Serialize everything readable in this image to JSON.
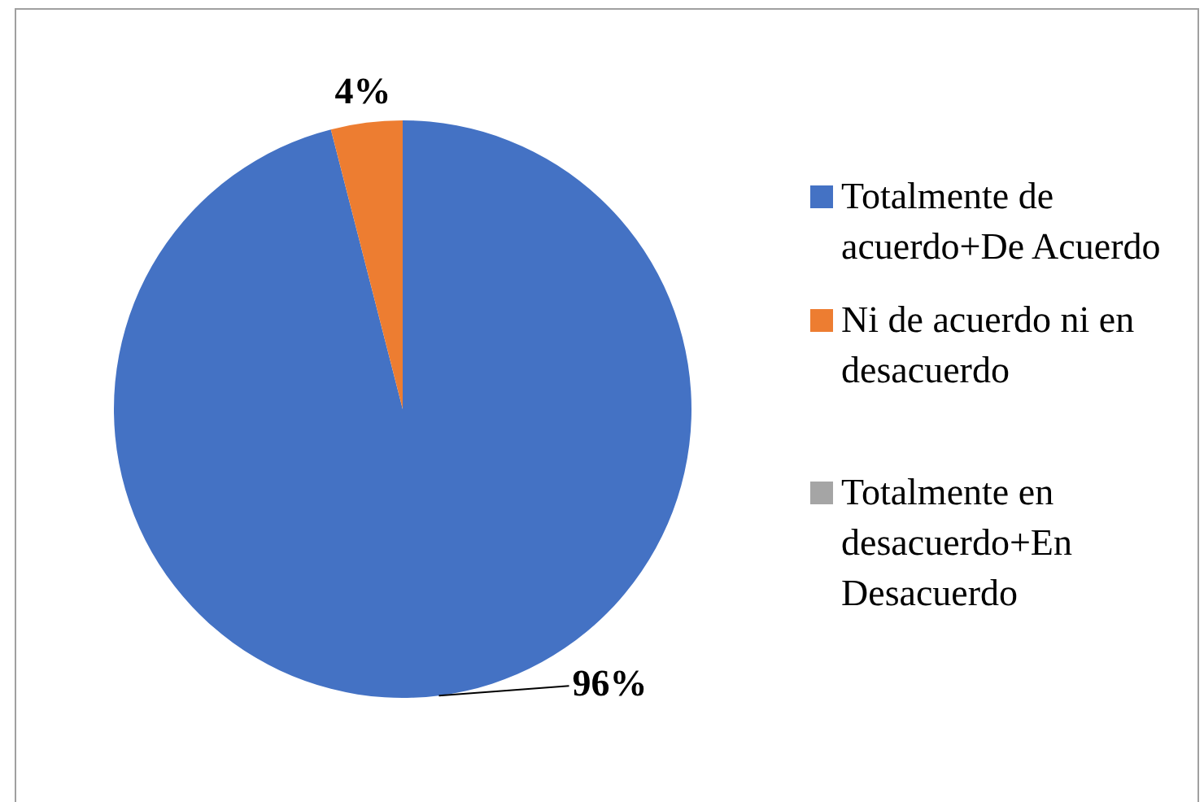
{
  "chart_data": {
    "type": "pie",
    "categories": [
      "Totalmente de acuerdo+De Acuerdo",
      "Ni de acuerdo ni en desacuerdo",
      "Totalmente en desacuerdo+En Desacuerdo"
    ],
    "values": [
      96,
      4,
      0
    ],
    "colors": [
      "#4472c4",
      "#ed7d31",
      "#a5a5a5"
    ],
    "value_labels": [
      "96%",
      "4%",
      null
    ],
    "legend": "right"
  }
}
